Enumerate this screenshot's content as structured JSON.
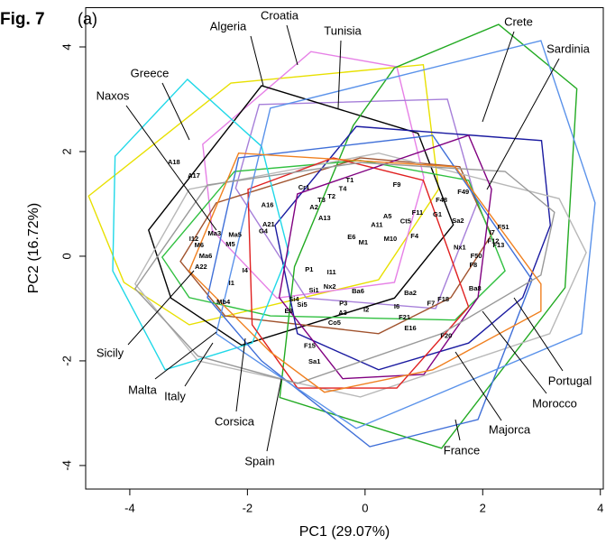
{
  "chart_data": {
    "type": "scatter",
    "title": "Fig. 7",
    "subtitle": "(a)",
    "x_label": "PC1 (29.07%)",
    "y_label": "PC2 (16.72%)",
    "xlim": [
      -4.75,
      4.05
    ],
    "ylim": [
      -4.45,
      4.75
    ],
    "xticks": [
      -4,
      -2,
      0,
      2,
      4
    ],
    "yticks": [
      -4,
      -2,
      0,
      2,
      4
    ],
    "series": [
      {
        "name": "Algeria",
        "color": "#e8e000",
        "x": [
          -4.7,
          -2.28,
          0.99,
          1.25,
          0.23,
          -2.99,
          -4.1
        ],
        "y": [
          1.15,
          3.31,
          3.66,
          1.28,
          -0.45,
          -1.31,
          -0.5
        ]
      },
      {
        "name": "Croatia",
        "color": "#e680e6",
        "x": [
          -2.76,
          -0.92,
          0.54,
          1.0,
          0.5,
          -1.5,
          -2.6
        ],
        "y": [
          2.14,
          3.91,
          3.62,
          1.5,
          -0.5,
          -0.8,
          0.5
        ]
      },
      {
        "name": "Tunisia",
        "color": "#a67fd9",
        "x": [
          -2.2,
          -1.8,
          1.4,
          1.9,
          1.2,
          -1.0
        ],
        "y": [
          1.3,
          2.9,
          3.0,
          1.0,
          -1.0,
          -0.8
        ]
      },
      {
        "name": "Greece",
        "color": "#000000",
        "x": [
          -3.68,
          -1.76,
          0.9,
          1.5,
          0.5,
          -2.1,
          -3.3
        ],
        "y": [
          0.5,
          3.26,
          2.35,
          0.6,
          -0.8,
          -1.7,
          -0.8
        ]
      },
      {
        "name": "Naxos",
        "color": "#a0522d",
        "x": [
          -3.14,
          -2.53,
          -0.08,
          1.61,
          2.15,
          1.46,
          0.23,
          -2.38
        ],
        "y": [
          -0.1,
          1.02,
          1.88,
          1.71,
          0.41,
          -0.79,
          -1.48,
          -1.14
        ]
      },
      {
        "name": "Crete",
        "color": "#22aa22",
        "x": [
          2.27,
          3.6,
          3.4,
          1.3,
          -1.45,
          -1.2,
          -0.2,
          0.5
        ],
        "y": [
          4.43,
          3.2,
          -0.6,
          -3.67,
          -2.7,
          -0.2,
          2.5,
          3.6
        ]
      },
      {
        "name": "Sardinia",
        "color": "#1a1aa0",
        "x": [
          -0.15,
          3.0,
          3.15,
          2.68,
          1.76,
          0.23,
          -1.15,
          -1.53
        ],
        "y": [
          2.48,
          2.21,
          0.59,
          -0.79,
          -1.66,
          -2.17,
          -1.48,
          0.59
        ]
      },
      {
        "name": "Sicily",
        "color": "#30c040",
        "x": [
          -3.45,
          -2.22,
          -0.08,
          1.76,
          2.38,
          1.53,
          -1.61,
          -2.99
        ],
        "y": [
          -0.02,
          1.62,
          1.83,
          1.45,
          -0.28,
          -1.22,
          -1.14,
          -0.79
        ]
      },
      {
        "name": "Malta",
        "color": "#20d8e8",
        "x": [
          -3.02,
          -1.76,
          -1.3,
          -1.92,
          -3.4,
          -4.29,
          -4.25
        ],
        "y": [
          3.38,
          2.1,
          0.07,
          -1.66,
          -2.17,
          -0.28,
          1.91
        ]
      },
      {
        "name": "Italy",
        "color": "#b8b8b8",
        "x": [
          -3.91,
          -2.99,
          0.23,
          3.3,
          3.76,
          3.14,
          -0.08,
          -2.84
        ],
        "y": [
          -0.53,
          1.28,
          1.97,
          1.1,
          0.07,
          -1.48,
          -2.69,
          -2.0
        ]
      },
      {
        "name": "Corsica",
        "color": "#e02020",
        "x": [
          -1.99,
          -0.54,
          0.99,
          1.76,
          0.54,
          -1.15,
          -1.92
        ],
        "y": [
          1.28,
          1.88,
          1.45,
          -0.97,
          -2.52,
          -2.52,
          -1.31
        ]
      },
      {
        "name": "Spain",
        "color": "#3f6fd8",
        "x": [
          -2.15,
          1.15,
          2.84,
          1.92,
          0.08,
          -1.76,
          -2.68
        ],
        "y": [
          1.88,
          2.31,
          -0.45,
          -3.12,
          -3.64,
          -2.0,
          -0.79
        ]
      },
      {
        "name": "France",
        "color": "#5a92ea",
        "x": [
          -1.61,
          2.99,
          3.91,
          3.68,
          -0.15,
          -2.53
        ],
        "y": [
          2.83,
          4.12,
          1.02,
          -1.48,
          -3.29,
          -1.48
        ]
      },
      {
        "name": "Majorca",
        "color": "#800080",
        "x": [
          -1.15,
          1.76,
          2.15,
          1.92,
          1.0,
          -0.38,
          -1.46
        ],
        "y": [
          1.19,
          2.31,
          1.28,
          -0.79,
          -2.26,
          -2.34,
          -0.79
        ]
      },
      {
        "name": "Morocco",
        "color": "#999999",
        "x": [
          -3.91,
          -2.68,
          -0.08,
          2.38,
          3.22,
          2.99,
          1.3,
          -1.15,
          -2.84
        ],
        "y": [
          -0.62,
          1.36,
          1.79,
          1.62,
          0.84,
          -0.36,
          -1.48,
          -2.43,
          -1.91
        ]
      },
      {
        "name": "Portugal",
        "color": "#f08020",
        "x": [
          -2.99,
          -2.15,
          1.53,
          2.99,
          2.99,
          1.15,
          -0.69,
          -1.61
        ],
        "y": [
          -0.28,
          1.97,
          1.71,
          -0.53,
          -1.05,
          -2.17,
          -2.6,
          -1.83
        ]
      }
    ],
    "points": {
      "labels": [
        "A18",
        "A17",
        "A16",
        "Cr1",
        "T1",
        "T4",
        "T3",
        "T2",
        "A2",
        "A13",
        "F9",
        "F48",
        "F49",
        "Sa2",
        "G1",
        "F11",
        "Ct5",
        "A11",
        "A5",
        "F4",
        "F51",
        "F13",
        "I7",
        "F12",
        "F50",
        "F8",
        "Ba8",
        "F18",
        "F7",
        "F21",
        "E16",
        "F20",
        "I6",
        "Ba2",
        "F15",
        "Sa1",
        "Co5",
        "A3",
        "P3",
        "I2",
        "Ba6",
        "Si5",
        "Si4",
        "E8",
        "Mb4",
        "I1",
        "I4",
        "A22",
        "Ma6",
        "M6",
        "I12",
        "Ma3",
        "Ma5",
        "M5",
        "G4",
        "A21",
        "M1",
        "E6",
        "Nx2",
        "Si1",
        "P1",
        "I11",
        "M10",
        "Nx1"
      ],
      "x": [
        -3.25,
        -2.91,
        -1.66,
        -1.04,
        -0.26,
        -0.38,
        -0.74,
        -0.57,
        -0.87,
        -0.69,
        0.54,
        1.3,
        1.67,
        1.58,
        1.23,
        0.89,
        0.69,
        0.2,
        0.38,
        0.84,
        2.35,
        2.27,
        2.16,
        2.18,
        1.89,
        1.84,
        1.87,
        1.33,
        1.12,
        0.67,
        0.77,
        1.38,
        0.54,
        0.77,
        -0.94,
        -0.86,
        -0.52,
        -0.38,
        -0.37,
        0.02,
        -0.12,
        -1.07,
        -1.21,
        -1.3,
        -2.41,
        -2.27,
        -2.04,
        -2.79,
        -2.71,
        -2.82,
        -2.91,
        -2.56,
        -2.21,
        -2.29,
        -1.73,
        -1.64,
        -0.03,
        -0.23,
        -0.6,
        -0.87,
        -0.95,
        -0.57,
        0.43,
        1.61
      ],
      "y": [
        1.79,
        1.53,
        0.97,
        1.31,
        1.45,
        1.28,
        1.07,
        1.14,
        0.93,
        0.72,
        1.36,
        1.07,
        1.22,
        0.67,
        0.79,
        0.83,
        0.66,
        0.59,
        0.76,
        0.38,
        0.55,
        0.21,
        0.45,
        0.28,
        0,
        -0.17,
        -0.62,
        -0.83,
        -0.91,
        -1.17,
        -1.38,
        -1.53,
        -0.97,
        -0.71,
        -1.72,
        -2.02,
        -1.28,
        -1.09,
        -0.91,
        -1.03,
        -0.67,
        -0.93,
        -0.83,
        -1.05,
        -0.88,
        -0.52,
        -0.28,
        -0.21,
        0,
        0.21,
        0.33,
        0.43,
        0.4,
        0.22,
        0.47,
        0.6,
        0.26,
        0.36,
        -0.59,
        -0.66,
        -0.26,
        -0.31,
        0.33,
        0.16
      ]
    }
  }
}
